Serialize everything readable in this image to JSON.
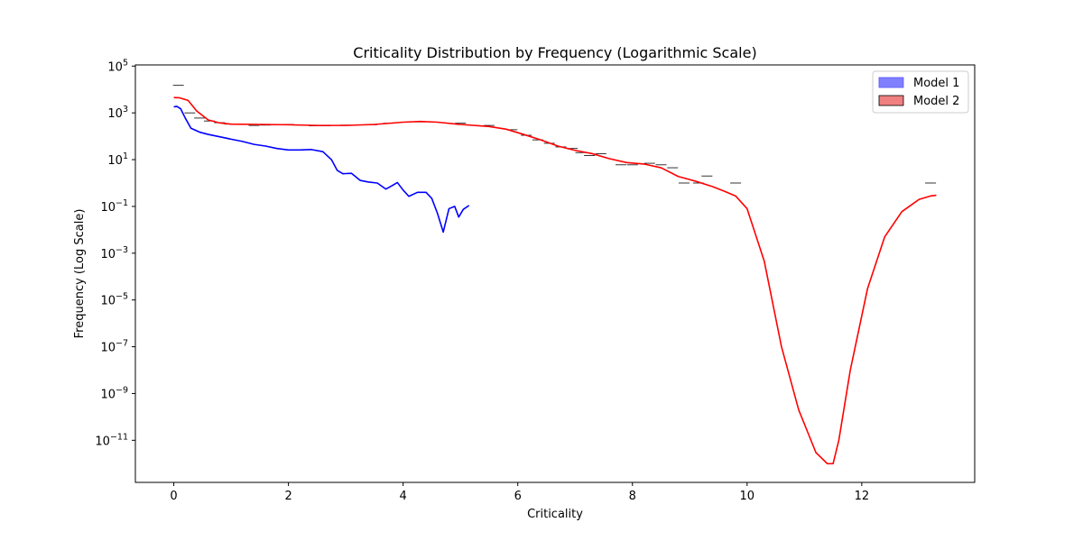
{
  "chart_data": {
    "type": "line",
    "title": "Criticality Distribution by Frequency (Logarithmic Scale)",
    "xlabel": "Criticality",
    "ylabel": "Frequency (Log Scale)",
    "xlim": [
      -0.67,
      13.97
    ],
    "ylim_log10": [
      -12.8,
      5.05
    ],
    "yscale": "log",
    "x_ticks": [
      0,
      2,
      4,
      6,
      8,
      10,
      12
    ],
    "y_tick_exponents": [
      5,
      3,
      1,
      -1,
      -3,
      -5,
      -7,
      -9,
      -11
    ],
    "y_tick_labels": [
      {
        "base": "10",
        "exp": "5"
      },
      {
        "base": "10",
        "exp": "3"
      },
      {
        "base": "10",
        "exp": "1"
      },
      {
        "base": "10",
        "exp": "−1"
      },
      {
        "base": "10",
        "exp": "−3"
      },
      {
        "base": "10",
        "exp": "−5"
      },
      {
        "base": "10",
        "exp": "−7"
      },
      {
        "base": "10",
        "exp": "−9"
      },
      {
        "base": "10",
        "exp": "−11"
      }
    ],
    "grid": false,
    "legend_position": "top-right",
    "legend": [
      {
        "label": "Model 1",
        "fill": "#8080ff",
        "edge": "#5555ff"
      },
      {
        "label": "Model 2",
        "fill": "#f08080",
        "edge": "#000000"
      }
    ],
    "series": [
      {
        "name": "Model 1",
        "color": "#0000ff",
        "x": [
          0,
          0.05,
          0.12,
          0.2,
          0.3,
          0.45,
          0.6,
          0.8,
          1.0,
          1.2,
          1.4,
          1.6,
          1.8,
          2.0,
          2.2,
          2.4,
          2.6,
          2.75,
          2.85,
          2.95,
          3.1,
          3.25,
          3.4,
          3.55,
          3.7,
          3.8,
          3.9,
          4.0,
          4.1,
          4.25,
          4.4,
          4.5,
          4.6,
          4.7,
          4.8,
          4.9,
          4.97,
          5.05,
          5.15
        ],
        "y": [
          1800,
          1900,
          1500,
          600,
          220,
          150,
          120,
          95,
          75,
          60,
          45,
          38,
          30,
          26,
          26,
          27,
          22,
          10,
          3.5,
          2.5,
          2.6,
          1.3,
          1.1,
          1.0,
          0.55,
          0.75,
          1.05,
          0.5,
          0.27,
          0.4,
          0.4,
          0.22,
          0.05,
          0.008,
          0.08,
          0.1,
          0.035,
          0.075,
          0.11
        ]
      },
      {
        "name": "Model 2",
        "color": "#ff0000",
        "x": [
          0,
          0.1,
          0.25,
          0.4,
          0.6,
          0.8,
          1.0,
          1.5,
          2.0,
          2.5,
          3.0,
          3.5,
          4.0,
          4.3,
          4.6,
          5.0,
          5.5,
          5.8,
          6.1,
          6.4,
          6.7,
          7.0,
          7.3,
          7.6,
          7.9,
          8.2,
          8.5,
          8.8,
          9.1,
          9.4,
          9.6,
          9.8,
          10.0,
          10.3,
          10.6,
          10.9,
          11.2,
          11.4,
          11.5,
          11.6,
          11.8,
          12.1,
          12.4,
          12.7,
          13.0,
          13.2,
          13.3
        ],
        "y": [
          4500,
          4400,
          3400,
          1200,
          500,
          370,
          330,
          320,
          310,
          290,
          290,
          320,
          400,
          430,
          400,
          320,
          260,
          200,
          120,
          70,
          38,
          25,
          18,
          11,
          7.5,
          6.5,
          4.5,
          1.9,
          1.2,
          0.7,
          0.45,
          0.28,
          0.08,
          0.00045,
          1e-07,
          2e-10,
          3e-12,
          1e-12,
          1e-12,
          1e-11,
          1e-08,
          3e-05,
          0.005,
          0.06,
          0.2,
          0.28,
          0.3
        ]
      }
    ],
    "hist_marks": [
      [
        0.08,
        15000
      ],
      [
        0.28,
        1000
      ],
      [
        0.45,
        600
      ],
      [
        0.62,
        450
      ],
      [
        0.8,
        380
      ],
      [
        0.98,
        330
      ],
      [
        1.2,
        320
      ],
      [
        1.4,
        290
      ],
      [
        1.6,
        300
      ],
      [
        1.8,
        310
      ],
      [
        2.0,
        320
      ],
      [
        2.2,
        300
      ],
      [
        2.45,
        280
      ],
      [
        2.65,
        280
      ],
      [
        3.0,
        300
      ],
      [
        3.45,
        310
      ],
      [
        3.75,
        360
      ],
      [
        4.3,
        410
      ],
      [
        5.0,
        360
      ],
      [
        5.5,
        290
      ],
      [
        5.9,
        190
      ],
      [
        6.15,
        110
      ],
      [
        6.35,
        70
      ],
      [
        6.55,
        50
      ],
      [
        6.75,
        35
      ],
      [
        6.95,
        30
      ],
      [
        7.1,
        20
      ],
      [
        7.25,
        15
      ],
      [
        7.45,
        18
      ],
      [
        7.8,
        6
      ],
      [
        8.0,
        6
      ],
      [
        8.3,
        7
      ],
      [
        8.5,
        6
      ],
      [
        8.7,
        4.5
      ],
      [
        8.9,
        1.0
      ],
      [
        9.15,
        1.0
      ],
      [
        9.3,
        2.0
      ],
      [
        9.8,
        1.0
      ],
      [
        13.2,
        1.0
      ]
    ]
  }
}
